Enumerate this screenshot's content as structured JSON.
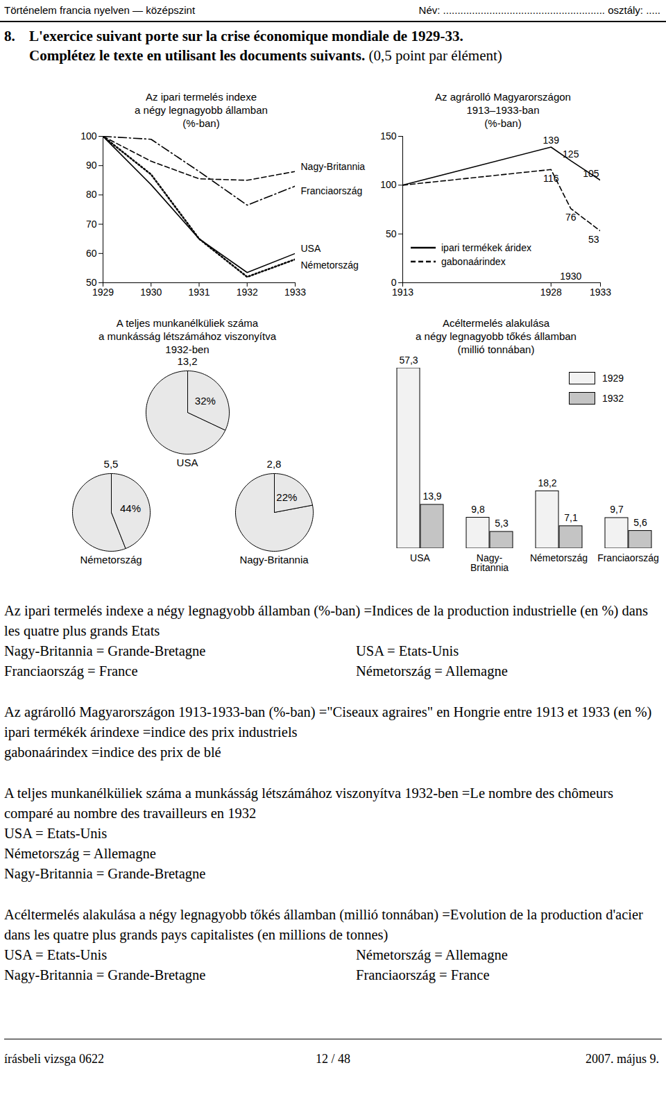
{
  "header": {
    "left": "Történelem francia nyelven — középszint",
    "right": "Név: ........................................................ osztály: ....."
  },
  "exercise": {
    "number": "8.",
    "line1": "L'exercice suivant porte sur la crise économique mondiale de 1929-33.",
    "line2": "Complétez le texte en utilisant les documents suivants.",
    "points": "(0,5 point par élément)"
  },
  "chart_data": [
    {
      "type": "line",
      "title": "Az ipari termelés indexe\na négy legnagyobb államban\n(%-ban)",
      "x": [
        1929,
        1930,
        1931,
        1932,
        1933
      ],
      "xlim": [
        1929,
        1933
      ],
      "xticks": [
        1929,
        1930,
        1931,
        1932,
        1933
      ],
      "ylim": [
        50,
        100
      ],
      "yticks": [
        50,
        60,
        70,
        80,
        90,
        100
      ],
      "series": [
        {
          "name": "Nagy-Britannia",
          "color": "#000000",
          "line_style": "dashed",
          "values": [
            100,
            91.5,
            85.5,
            85,
            88
          ]
        },
        {
          "name": "Franciaország",
          "color": "#000000",
          "line_style": "dashdot",
          "values": [
            100,
            99,
            88,
            76.5,
            83
          ]
        },
        {
          "name": "USA",
          "color": "#000000",
          "line_style": "solid",
          "values": [
            100,
            83.5,
            65,
            53.5,
            60
          ]
        },
        {
          "name": "Németország",
          "color": "#000000",
          "line_style": "dotted",
          "values": [
            100,
            87,
            65,
            52,
            58
          ]
        }
      ]
    },
    {
      "type": "line",
      "title": "Az agrárolló Magyarországon\n1913–1933-ban\n(%-ban)",
      "x": [
        1913,
        1928,
        1930,
        1933
      ],
      "xlim": [
        1913,
        1933
      ],
      "xticks": [
        1913,
        1928,
        1933
      ],
      "ylim": [
        0,
        150
      ],
      "yticks": [
        0,
        50,
        100,
        150
      ],
      "legend": "lower left",
      "data_labels": true,
      "series": [
        {
          "name": "ipari termékek áridex",
          "color": "#000000",
          "line_style": "solid",
          "values": [
            100,
            139,
            125,
            105
          ],
          "value_labels": [
            null,
            "139",
            "125",
            "105"
          ]
        },
        {
          "name": "gabonaárindex",
          "color": "#000000",
          "line_style": "dashed",
          "values": [
            100,
            116,
            76,
            53
          ],
          "value_labels": [
            null,
            "116",
            "76",
            "53"
          ]
        }
      ],
      "annotations": [
        {
          "text": "1930",
          "x": 1930
        }
      ]
    },
    {
      "type": "pie",
      "title": "A teljes munkanélküliek száma\na munkásság létszámához viszonyítva\n1932-ben",
      "categories": [
        "USA",
        "Németország",
        "Nagy-Britannia"
      ],
      "values": [
        32,
        44,
        22
      ],
      "value_labels": [
        "32%",
        "44%",
        "22%"
      ],
      "totals": [
        13.2,
        5.5,
        2.8
      ],
      "total_labels": [
        "13,2",
        "5,5",
        "2,8"
      ],
      "color": "#e8e8e8",
      "data_labels": true
    },
    {
      "type": "bar",
      "title": "Acéltermelés alakulása\na négy legnagyobb tőkés államban\n(millió tonnában)",
      "categories": [
        "USA",
        "Nagy-Britannia",
        "Németország",
        "Franciaország"
      ],
      "series": [
        {
          "name": "1929",
          "color": "#f2f2f2",
          "values": [
            57.3,
            9.8,
            18.2,
            9.7
          ],
          "value_labels": [
            "57,3",
            "9,8",
            "18,2",
            "9,7"
          ]
        },
        {
          "name": "1932",
          "color": "#c4c4c4",
          "values": [
            13.9,
            5.3,
            7.1,
            5.6
          ],
          "value_labels": [
            "13,9",
            "5,3",
            "7,1",
            "5,6"
          ]
        }
      ],
      "legend": "top-right",
      "data_labels": true,
      "tick_labels": "x"
    }
  ],
  "glossary": [
    [
      [
        "Az ipari termelés indexe a négy legnagyobb államban (%-ban) =Indices de la production industrielle (en %) dans les quatre plus grands Etats"
      ],
      [
        "Nagy-Britannia = Grande-Bretagne",
        "USA = Etats-Unis"
      ],
      [
        "Franciaország = France",
        "Németország = Allemagne"
      ]
    ],
    [
      [
        "Az agrárolló Magyarországon 1913-1933-ban (%-ban) =\"Ciseaux agraires\" en Hongrie entre 1913 et 1933 (en %)"
      ],
      [
        "ipari termékék árindexe =indice des prix industriels"
      ],
      [
        "gabonaárindex =indice des prix de blé"
      ]
    ],
    [
      [
        "A teljes munkanélküliek száma a munkásság létszámához viszonyítva 1932-ben =Le nombre des chômeurs comparé au nombre des travailleurs en 1932"
      ],
      [
        "USA = Etats-Unis"
      ],
      [
        "Németország = Allemagne"
      ],
      [
        "Nagy-Britannia = Grande-Bretagne"
      ]
    ],
    [
      [
        "Acéltermelés alakulása a négy legnagyobb tőkés államban (millió tonnában) =Evolution de la production d'acier dans les quatre plus grands pays capitalistes (en millions de tonnes)"
      ],
      [
        "USA = Etats-Unis",
        "Németország = Allemagne"
      ],
      [
        "Nagy-Britannia = Grande-Bretagne",
        "Franciaország = France"
      ]
    ]
  ],
  "footer": {
    "left": "írásbeli vizsga 0622",
    "center": "12 / 48",
    "right": "2007. május 9."
  }
}
